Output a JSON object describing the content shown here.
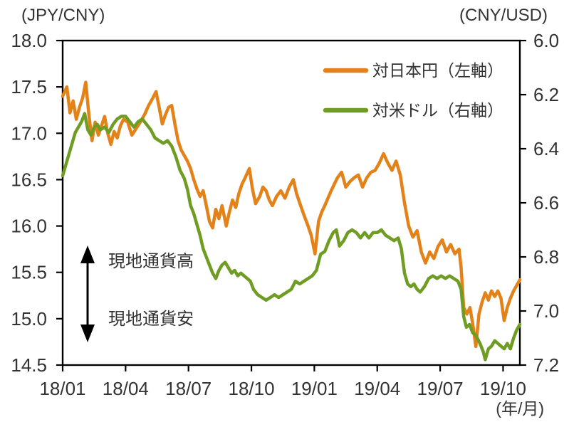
{
  "header": {
    "left_axis_unit": "(JPY/CNY)",
    "right_axis_unit": "(CNY/USD)"
  },
  "annotation": {
    "up_label": "現地通貨高",
    "down_label": "現地通貨安"
  },
  "chart_data": {
    "type": "line",
    "x_unit_label": "(年/月)",
    "x_unit": "months_since_2018_01",
    "x_domain": [
      0,
      21.8
    ],
    "grid": "off",
    "legend_position": "top-right-inside",
    "x_ticks": [
      {
        "m": 0,
        "label": "18/01"
      },
      {
        "m": 3,
        "label": "18/04"
      },
      {
        "m": 6,
        "label": "18/07"
      },
      {
        "m": 9,
        "label": "18/10"
      },
      {
        "m": 12,
        "label": "19/01"
      },
      {
        "m": 15,
        "label": "19/04"
      },
      {
        "m": 18,
        "label": "19/07"
      },
      {
        "m": 21,
        "label": "19/10"
      }
    ],
    "left_axis": {
      "unit": "JPY/CNY",
      "lim": [
        14.5,
        18.0
      ],
      "ticks": [
        "18.0",
        "17.5",
        "17.0",
        "16.5",
        "16.0",
        "15.5",
        "15.0",
        "14.5"
      ]
    },
    "right_axis": {
      "unit": "CNY/USD",
      "lim": [
        6.0,
        7.2
      ],
      "inverted": true,
      "ticks": [
        "6.0",
        "6.2",
        "6.4",
        "6.6",
        "6.8",
        "7.0",
        "7.2"
      ]
    },
    "series": [
      {
        "name": "対日本円（左軸）",
        "axis": "left",
        "color": "#e4821a",
        "x": [
          0,
          0.2,
          0.35,
          0.5,
          0.65,
          0.8,
          0.95,
          1.1,
          1.25,
          1.4,
          1.55,
          1.7,
          1.85,
          2,
          2.15,
          2.3,
          2.45,
          2.6,
          2.75,
          2.9,
          3.1,
          3.3,
          3.5,
          3.7,
          3.9,
          4.1,
          4.3,
          4.45,
          4.6,
          4.75,
          4.9,
          5.05,
          5.2,
          5.35,
          5.5,
          5.65,
          5.8,
          5.95,
          6.1,
          6.25,
          6.4,
          6.55,
          6.7,
          6.85,
          7,
          7.15,
          7.3,
          7.45,
          7.6,
          7.8,
          7.95,
          8.1,
          8.25,
          8.4,
          8.55,
          8.7,
          8.9,
          9.05,
          9.2,
          9.4,
          9.55,
          9.7,
          9.85,
          10,
          10.2,
          10.4,
          10.6,
          10.8,
          11,
          11.15,
          11.3,
          11.5,
          11.7,
          11.85,
          12.03,
          12.2,
          12.35,
          12.5,
          12.65,
          12.8,
          12.95,
          13.1,
          13.3,
          13.5,
          13.7,
          13.9,
          14.1,
          14.3,
          14.5,
          14.7,
          14.9,
          15.1,
          15.3,
          15.5,
          15.7,
          15.9,
          16.1,
          16.3,
          16.5,
          16.7,
          16.9,
          17.1,
          17.3,
          17.5,
          17.7,
          17.9,
          18.1,
          18.3,
          18.5,
          18.7,
          18.9,
          19,
          19.12,
          19.27,
          19.42,
          19.55,
          19.7,
          19.85,
          20,
          20.15,
          20.3,
          20.45,
          20.6,
          20.75,
          20.9,
          21.05,
          21.2,
          21.35,
          21.5,
          21.65,
          21.8
        ],
        "values": [
          17.4,
          17.5,
          17.22,
          17.35,
          17.15,
          17.28,
          17.38,
          17.55,
          17.2,
          16.92,
          17.12,
          16.98,
          17.08,
          17.18,
          17,
          16.88,
          17.02,
          16.95,
          17.08,
          17.15,
          17.12,
          16.98,
          17.05,
          17.12,
          17.2,
          17.3,
          17.38,
          17.45,
          17.28,
          17.1,
          17.2,
          17.28,
          17.3,
          17.1,
          16.92,
          16.82,
          16.76,
          16.7,
          16.62,
          16.5,
          16.4,
          16.32,
          16.38,
          16.22,
          16.05,
          15.98,
          16.18,
          16.08,
          16.22,
          16,
          16.15,
          16.28,
          16.2,
          16.35,
          16.45,
          16.52,
          16.62,
          16.4,
          16.24,
          16.32,
          16.42,
          16.38,
          16.28,
          16.22,
          16.32,
          16.38,
          16.3,
          16.42,
          16.5,
          16.35,
          16.25,
          16.12,
          16,
          15.9,
          15.7,
          16.05,
          16.15,
          16.22,
          16.3,
          16.38,
          16.45,
          16.52,
          16.58,
          16.42,
          16.48,
          16.52,
          16.55,
          16.42,
          16.52,
          16.58,
          16.6,
          16.68,
          16.78,
          16.68,
          16.6,
          16.7,
          16.55,
          16.25,
          16,
          15.88,
          15.95,
          15.72,
          15.6,
          15.72,
          15.65,
          15.78,
          15.85,
          15.72,
          15.8,
          15.7,
          15.75,
          15.55,
          15.12,
          15.05,
          15.12,
          14.95,
          14.7,
          15.05,
          15.18,
          15.28,
          15.2,
          15.3,
          15.24,
          15.3,
          15.22,
          14.98,
          15.12,
          15.22,
          15.3,
          15.36,
          15.42
        ]
      },
      {
        "name": "対米ドル（右軸）",
        "axis": "right",
        "color": "#6f9d23",
        "x": [
          0,
          0.15,
          0.3,
          0.45,
          0.6,
          0.75,
          0.9,
          1.05,
          1.2,
          1.35,
          1.5,
          1.65,
          1.8,
          2,
          2.2,
          2.4,
          2.6,
          2.8,
          3,
          3.2,
          3.4,
          3.6,
          3.8,
          4,
          4.2,
          4.4,
          4.6,
          4.8,
          5,
          5.2,
          5.4,
          5.6,
          5.8,
          5.95,
          6.1,
          6.25,
          6.4,
          6.55,
          6.7,
          6.85,
          7,
          7.15,
          7.3,
          7.45,
          7.6,
          7.75,
          7.9,
          8.05,
          8.2,
          8.35,
          8.5,
          8.65,
          8.8,
          8.95,
          9.1,
          9.3,
          9.5,
          9.7,
          9.9,
          10.1,
          10.3,
          10.5,
          10.7,
          10.9,
          11.1,
          11.3,
          11.5,
          11.7,
          11.9,
          12.1,
          12.3,
          12.5,
          12.7,
          12.9,
          13.05,
          13.2,
          13.4,
          13.6,
          13.8,
          14,
          14.2,
          14.4,
          14.6,
          14.8,
          15,
          15.2,
          15.4,
          15.6,
          15.8,
          16,
          16.15,
          16.3,
          16.45,
          16.6,
          16.75,
          16.9,
          17.05,
          17.25,
          17.45,
          17.65,
          17.85,
          18.05,
          18.25,
          18.45,
          18.65,
          18.85,
          19,
          19.12,
          19.25,
          19.4,
          19.55,
          19.7,
          19.9,
          20.05,
          20.15,
          20.3,
          20.45,
          20.6,
          20.75,
          20.9,
          21.05,
          21.2,
          21.35,
          21.5,
          21.65,
          21.8
        ],
        "values": [
          6.5,
          6.46,
          6.42,
          6.38,
          6.34,
          6.32,
          6.3,
          6.27,
          6.33,
          6.35,
          6.32,
          6.31,
          6.33,
          6.32,
          6.34,
          6.31,
          6.29,
          6.28,
          6.28,
          6.3,
          6.32,
          6.3,
          6.29,
          6.31,
          6.33,
          6.36,
          6.37,
          6.38,
          6.37,
          6.39,
          6.43,
          6.48,
          6.51,
          6.55,
          6.61,
          6.64,
          6.68,
          6.72,
          6.77,
          6.8,
          6.83,
          6.86,
          6.88,
          6.85,
          6.83,
          6.82,
          6.84,
          6.86,
          6.85,
          6.87,
          6.86,
          6.87,
          6.88,
          6.89,
          6.92,
          6.94,
          6.95,
          6.96,
          6.95,
          6.94,
          6.95,
          6.94,
          6.93,
          6.92,
          6.89,
          6.9,
          6.89,
          6.88,
          6.87,
          6.85,
          6.79,
          6.78,
          6.74,
          6.71,
          6.7,
          6.76,
          6.74,
          6.71,
          6.7,
          6.71,
          6.73,
          6.71,
          6.73,
          6.71,
          6.71,
          6.7,
          6.72,
          6.73,
          6.74,
          6.73,
          6.77,
          6.86,
          6.9,
          6.91,
          6.9,
          6.92,
          6.93,
          6.91,
          6.88,
          6.87,
          6.88,
          6.87,
          6.88,
          6.87,
          6.88,
          6.89,
          6.92,
          7.02,
          7.06,
          7.05,
          7.08,
          7.09,
          7.12,
          7.15,
          7.18,
          7.14,
          7.13,
          7.11,
          7.12,
          7.13,
          7.14,
          7.12,
          7.14,
          7.1,
          7.07,
          7.05
        ]
      }
    ]
  }
}
